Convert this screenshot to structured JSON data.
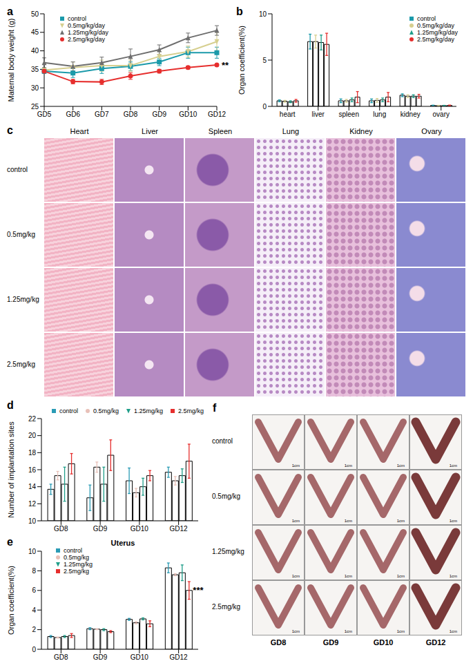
{
  "panels": [
    "a",
    "b",
    "c",
    "d",
    "e",
    "f"
  ],
  "chart_data": [
    {
      "type": "line",
      "categories": [
        "GD5",
        "GD6",
        "GD7",
        "GD8",
        "GD9",
        "GD10",
        "GD12"
      ],
      "ylabel": "Maternal body weight (g)",
      "ylim": [
        25,
        50
      ],
      "yticks": [
        25,
        30,
        35,
        40,
        45,
        50
      ],
      "grid": false,
      "legend": "upper left",
      "series": [
        {
          "name": "control",
          "color": "#1b9aaa",
          "marker": "square",
          "values": [
            34.5,
            34,
            35.2,
            35.8,
            37,
            39.5,
            39.5
          ],
          "errors": [
            0.6,
            1.2,
            1.3,
            1.2,
            1.0,
            1.5,
            1.5
          ]
        },
        {
          "name": "0.5mg/kg/day",
          "color": "#d6cf8f",
          "marker": "triangle-down",
          "values": [
            34.8,
            35.5,
            36,
            36,
            38.5,
            39.8,
            42.5
          ],
          "errors": [
            0.5,
            1.5,
            1.5,
            1.5,
            1.3,
            1.5,
            2.5
          ]
        },
        {
          "name": "1.25mg/kg/day",
          "color": "#6e6e6e",
          "marker": "triangle",
          "values": [
            36.8,
            35.8,
            36.8,
            38.5,
            40.3,
            43.5,
            45.5
          ],
          "errors": [
            1.3,
            1.2,
            1.5,
            2.0,
            1.3,
            1.3,
            1.3
          ]
        },
        {
          "name": "2.5mg/kg/day",
          "color": "#e62e2d",
          "marker": "circle",
          "values": [
            34.5,
            31.7,
            31.6,
            33.2,
            34.5,
            35.5,
            36.2
          ],
          "errors": [
            0.5,
            0.6,
            0.7,
            0.9,
            0.5,
            0.4,
            0.3
          ]
        }
      ],
      "annotations": [
        {
          "text": "**",
          "series": "2.5mg/kg/day",
          "category": "GD12"
        }
      ]
    },
    {
      "type": "bar",
      "categories": [
        "heart",
        "liver",
        "spleen",
        "lung",
        "kidney",
        "ovary"
      ],
      "ylabel": "Organ coefficient(%)",
      "ylim": [
        0,
        10
      ],
      "yticks": [
        0,
        5,
        10
      ],
      "grid": false,
      "legend": "upper right",
      "series": [
        {
          "name": "control",
          "color": "#1b9aaa",
          "marker": "square",
          "values": [
            0.6,
            7.0,
            0.6,
            0.6,
            1.2,
            0.1
          ],
          "errors": [
            0.1,
            0.8,
            0.2,
            0.2,
            0.15,
            0.03
          ]
        },
        {
          "name": "0.5mg/kg/day",
          "color": "#d6cf8f",
          "marker": "circle",
          "values": [
            0.55,
            7.0,
            0.6,
            0.65,
            1.1,
            0.08
          ],
          "errors": [
            0.1,
            0.7,
            0.15,
            0.2,
            0.15,
            0.03
          ]
        },
        {
          "name": "1.25mg/kg/day",
          "color": "#1f9e89",
          "marker": "triangle",
          "values": [
            0.5,
            6.9,
            0.7,
            0.7,
            1.1,
            0.08
          ],
          "errors": [
            0.1,
            0.8,
            0.2,
            0.2,
            0.15,
            0.03
          ]
        },
        {
          "name": "2.5mg/kg/day",
          "color": "#e62e2d",
          "marker": "circle",
          "values": [
            0.6,
            6.7,
            1.0,
            1.0,
            1.1,
            0.1
          ],
          "errors": [
            0.15,
            1.2,
            0.6,
            0.5,
            0.2,
            0.04
          ]
        }
      ],
      "annotations": []
    },
    {
      "type": "bar",
      "categories": [
        "GD8",
        "GD9",
        "GD10",
        "GD12"
      ],
      "ylabel": "Number of implantation sites",
      "ylim": [
        10,
        22
      ],
      "yticks": [
        10,
        12,
        14,
        16,
        18,
        20,
        22
      ],
      "grid": false,
      "legend": "top",
      "series": [
        {
          "name": "control",
          "color": "#2a9bb5",
          "marker": "square",
          "values": [
            13.7,
            12.7,
            14.7,
            15.7
          ],
          "errors": [
            0.6,
            1.5,
            1.5,
            0.6
          ]
        },
        {
          "name": "0.5mg/kg",
          "color": "#e8c0b8",
          "marker": "circle",
          "values": [
            15.3,
            16.3,
            13.3,
            14.7
          ],
          "errors": [
            0.5,
            0.6,
            0.5,
            0.5
          ]
        },
        {
          "name": "1.25mg/kg",
          "color": "#1f9e89",
          "marker": "triangle-down",
          "values": [
            14.3,
            14.3,
            14.0,
            15.3
          ],
          "errors": [
            2.0,
            2.0,
            1.0,
            0.8
          ]
        },
        {
          "name": "2.5mg/kg",
          "color": "#e62e2d",
          "marker": "square",
          "values": [
            16.7,
            17.7,
            15.3,
            17.0
          ],
          "errors": [
            1.2,
            1.8,
            0.6,
            2.0
          ]
        }
      ],
      "annotations": []
    },
    {
      "type": "bar",
      "title": "Uterus",
      "categories": [
        "GD8",
        "GD9",
        "GD10",
        "GD12"
      ],
      "ylabel": "Organ coefficient(%)",
      "ylim": [
        0,
        10
      ],
      "yticks": [
        0,
        2,
        4,
        6,
        8,
        10
      ],
      "grid": false,
      "legend": "upper left",
      "series": [
        {
          "name": "control",
          "color": "#2a9bb5",
          "marker": "square",
          "values": [
            1.3,
            2.1,
            3.05,
            8.3
          ],
          "errors": [
            0.1,
            0.1,
            0.1,
            0.5
          ]
        },
        {
          "name": "0.5mg/kg",
          "color": "#e8c0b8",
          "marker": "circle",
          "values": [
            1.2,
            2.05,
            2.7,
            7.6
          ],
          "errors": [
            0.05,
            0.05,
            0.1,
            0.1
          ]
        },
        {
          "name": "1.25mg/kg",
          "color": "#1f9e89",
          "marker": "triangle-down",
          "values": [
            1.3,
            2.0,
            3.1,
            7.8
          ],
          "errors": [
            0.1,
            0.1,
            0.1,
            0.8
          ]
        },
        {
          "name": "2.5mg/kg",
          "color": "#e62e2d",
          "marker": "square",
          "values": [
            1.4,
            1.8,
            2.6,
            6.0
          ],
          "errors": [
            0.2,
            0.1,
            0.3,
            0.9
          ]
        }
      ],
      "annotations": [
        {
          "text": "***",
          "series": "2.5mg/kg",
          "category": "GD12"
        }
      ]
    }
  ],
  "histology": {
    "columns": [
      "Heart",
      "Liver",
      "Spleen",
      "Lung",
      "Kidney",
      "Ovary"
    ],
    "rows": [
      "control",
      "0.5mg/kg",
      "1.25mg/kg",
      "2.5mg/kg"
    ]
  },
  "uterus_photos": {
    "rows": [
      "control",
      "0.5mg/kg",
      "1.25mg/kg",
      "2.5mg/kg"
    ],
    "columns": [
      "GD8",
      "GD9",
      "GD10",
      "GD12"
    ],
    "scale_label": "1cm"
  }
}
